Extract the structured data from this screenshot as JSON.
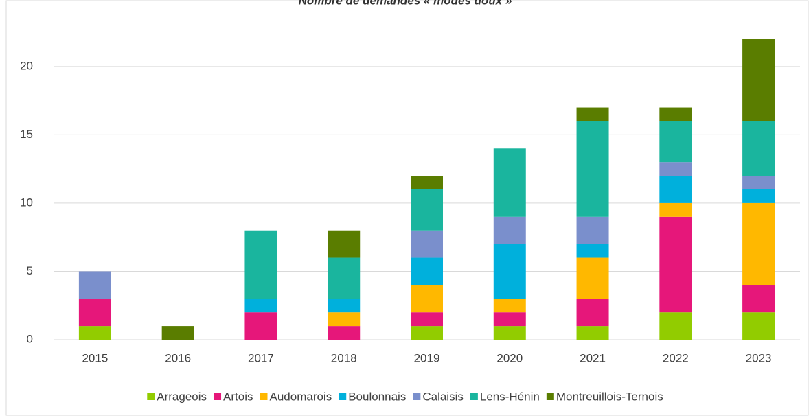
{
  "chart_data": {
    "type": "bar",
    "stacked": true,
    "title": "Nombre de demandes « modes doux »",
    "categories": [
      "2015",
      "2016",
      "2017",
      "2018",
      "2019",
      "2020",
      "2021",
      "2022",
      "2023"
    ],
    "series": [
      {
        "name": "Arrageois",
        "color": "#92cc00",
        "values": [
          1,
          0,
          0,
          0,
          1,
          1,
          1,
          2,
          2
        ]
      },
      {
        "name": "Artois",
        "color": "#e6177a",
        "values": [
          2,
          0,
          2,
          1,
          1,
          1,
          2,
          7,
          2
        ]
      },
      {
        "name": "Audomarois",
        "color": "#ffb800",
        "values": [
          0,
          0,
          0,
          1,
          2,
          1,
          3,
          1,
          6
        ]
      },
      {
        "name": "Boulonnais",
        "color": "#00b0dc",
        "values": [
          0,
          0,
          1,
          1,
          2,
          4,
          1,
          2,
          1
        ]
      },
      {
        "name": "Calaisis",
        "color": "#7a8fcc",
        "values": [
          2,
          0,
          0,
          0,
          2,
          2,
          2,
          1,
          1
        ]
      },
      {
        "name": "Lens-Hénin",
        "color": "#1ab59e",
        "values": [
          0,
          0,
          5,
          3,
          3,
          5,
          7,
          3,
          4
        ]
      },
      {
        "name": "Montreuillois-Ternois",
        "color": "#5a7d00",
        "values": [
          0,
          1,
          0,
          2,
          1,
          0,
          1,
          1,
          6
        ]
      }
    ],
    "ylim": [
      0,
      22
    ],
    "yticks": [
      0,
      5,
      10,
      15,
      20
    ],
    "grid": true,
    "legend": "bottom"
  }
}
